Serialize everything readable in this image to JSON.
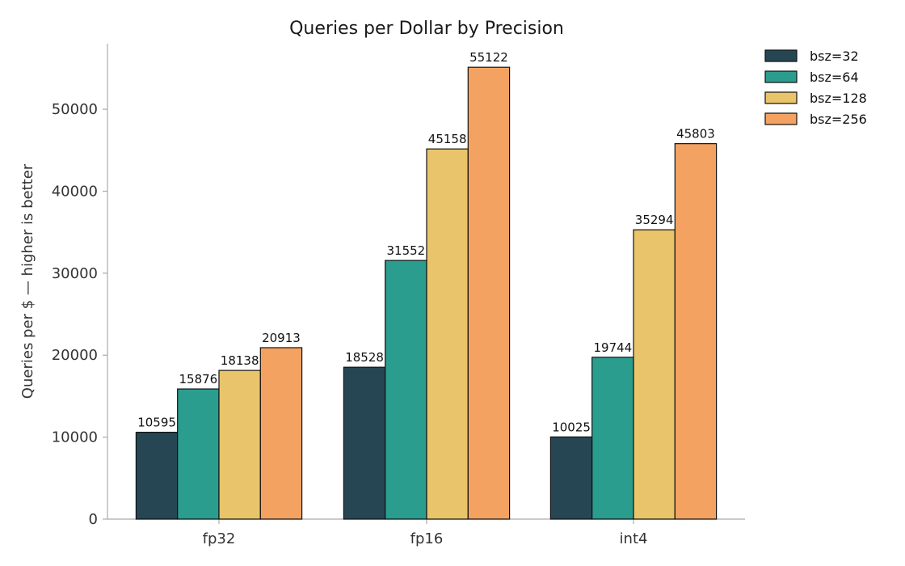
{
  "chart_data": {
    "type": "bar",
    "title": "Queries per Dollar by Precision",
    "xlabel": "",
    "ylabel": "Queries per $ — higher is better",
    "categories": [
      "fp32",
      "fp16",
      "int4"
    ],
    "series": [
      {
        "name": "bsz=32",
        "color": "#264653",
        "values": [
          10595,
          18528,
          10025
        ]
      },
      {
        "name": "bsz=64",
        "color": "#2a9d8f",
        "values": [
          15876,
          31552,
          19744
        ]
      },
      {
        "name": "bsz=128",
        "color": "#e9c46a",
        "values": [
          18138,
          45158,
          35294
        ]
      },
      {
        "name": "bsz=256",
        "color": "#f4a261",
        "values": [
          20913,
          55122,
          45803
        ]
      }
    ],
    "ylim": [
      0,
      58000
    ],
    "yticks": [
      0,
      10000,
      20000,
      30000,
      40000,
      50000
    ],
    "grid": false,
    "legend": "top-right, outside plot"
  }
}
